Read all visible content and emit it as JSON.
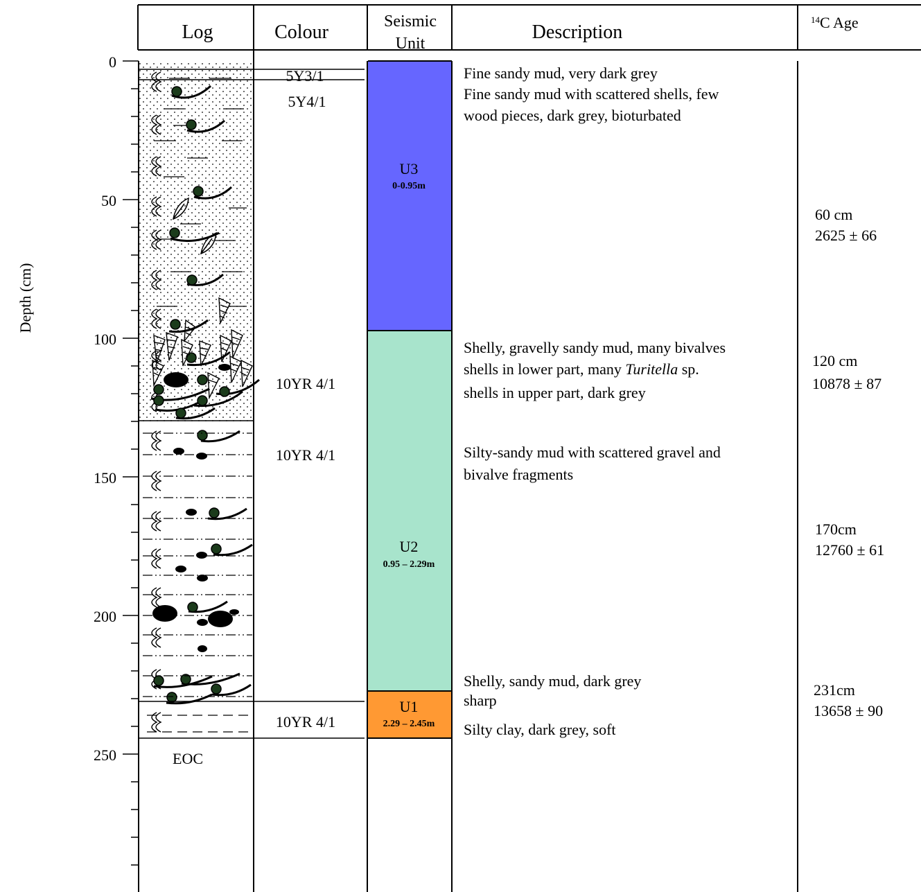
{
  "header": {
    "log": "Log",
    "colour": "Colour",
    "seismic_line1": "Seismic",
    "seismic_line2": "Unit",
    "description": "Description",
    "age_sup": "14",
    "age_rest": "C Age"
  },
  "axis": {
    "label": "Depth (cm)",
    "ticks": [
      "0",
      "50",
      "100",
      "150",
      "200",
      "250"
    ]
  },
  "log": {
    "end_label": "EOC"
  },
  "colours": [
    "5Y3/1",
    "5Y4/1",
    "10YR 4/1",
    "10YR 4/1",
    "10YR 4/1"
  ],
  "units": [
    {
      "name": "U3",
      "range": "0-0.95m",
      "color": "#6666ff"
    },
    {
      "name": "U2",
      "range": "0.95 – 2.29m",
      "color": "#a8e4cc"
    },
    {
      "name": "U1",
      "range": "2.29 – 2.45m",
      "color": "#ff9933"
    }
  ],
  "descriptions": {
    "d1": "Fine sandy mud, very dark grey",
    "d2a": "Fine sandy mud with scattered shells, few",
    "d2b": "wood pieces, dark grey, bioturbated",
    "d3a": "Shelly, gravelly sandy mud, many bivalves",
    "d3b_pre": "shells in lower part, many ",
    "d3b_italic": "Turitella",
    "d3b_post": " sp.",
    "d3c": "shells  in upper part, dark grey",
    "d4a": "Silty-sandy mud with scattered gravel and",
    "d4b": "bivalve fragments",
    "d5": "Shelly, sandy mud, dark grey",
    "d6": "sharp",
    "d7": "Silty clay, dark grey, soft"
  },
  "ages": [
    {
      "depth": "60 cm",
      "age": "2625 ± 66"
    },
    {
      "depth": "120 cm",
      "age": "10878 ± 87"
    },
    {
      "depth": "170cm",
      "age": "12760 ± 61"
    },
    {
      "depth": "231cm",
      "age": "13658 ± 90"
    }
  ]
}
